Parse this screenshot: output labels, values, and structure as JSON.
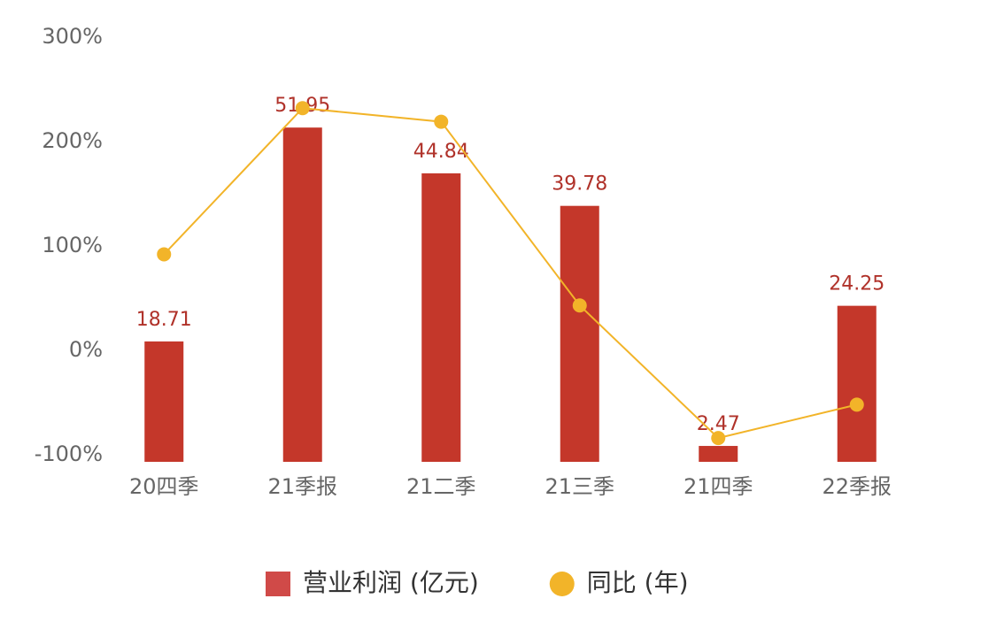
{
  "chart_data": {
    "type": "bar-line",
    "categories": [
      "20四季",
      "21季报",
      "21二季",
      "21三季",
      "21四季",
      "22季报"
    ],
    "series": [
      {
        "name": "营业利润 (亿元)",
        "type": "bar",
        "color": "#c4372a",
        "axis": "y2",
        "values": [
          18.71,
          51.95,
          44.84,
          39.78,
          2.47,
          24.25
        ]
      },
      {
        "name": "同比 (年)",
        "type": "line",
        "color": "#f2b429",
        "values": [
          92,
          232,
          219,
          43,
          -84,
          -52
        ]
      }
    ],
    "ylim": [
      -100,
      300
    ],
    "yticks": [
      {
        "value": -100,
        "label": "-100%"
      },
      {
        "value": 0,
        "label": "0%"
      },
      {
        "value": 100,
        "label": "100%"
      },
      {
        "value": 200,
        "label": "200%"
      },
      {
        "value": 300,
        "label": "300%"
      }
    ],
    "y2lim": [
      0,
      66
    ],
    "legend": "bottom"
  }
}
